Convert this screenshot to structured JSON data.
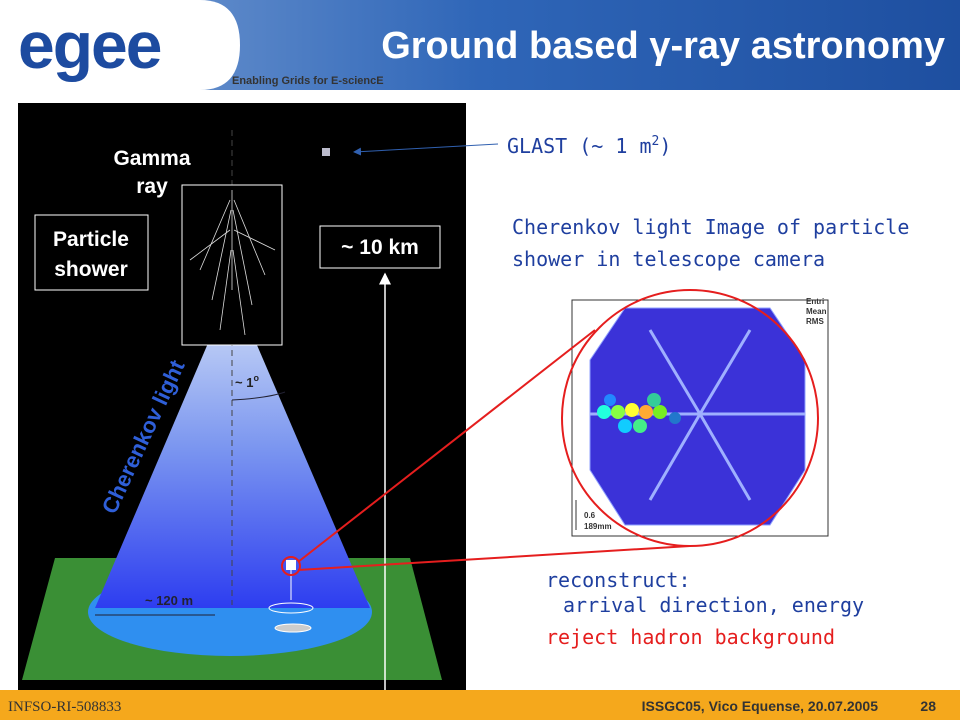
{
  "header": {
    "logo": "egee",
    "tagline": "Enabling Grids for E-sciencE",
    "title": "Ground based γ-ray astronomy"
  },
  "diagram": {
    "gamma_line1": "Gamma",
    "gamma_line2": "ray",
    "shower_line1": "Particle",
    "shower_line2": "shower",
    "height": "~ 10 km",
    "cherenkov": "Cherenkov light",
    "angle": "~ 1",
    "angle_sup": "o",
    "radius": "~ 120 m"
  },
  "glast": {
    "text": "GLAST (~ 1 m",
    "sup": "2",
    "close": ")"
  },
  "camera": {
    "caption_line1": "Cherenkov light Image of particle",
    "caption_line2": "shower in telescope camera",
    "stats": [
      "Entri",
      "Mean",
      "RMS"
    ],
    "scale_value": "0.6",
    "scale_unit": "189mm"
  },
  "notes": {
    "reconstruct": "reconstruct:",
    "details": "arrival direction, energy",
    "reject": "reject hadron background"
  },
  "footer": {
    "project": "INFSO-RI-508833",
    "event": "ISSGC05, Vico Equense, 20.07.2005",
    "page": "28"
  }
}
